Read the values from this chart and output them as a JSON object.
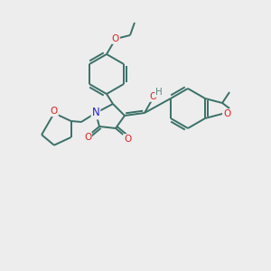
{
  "bg_color": "#EDEDED",
  "bond_color": "#3a7068",
  "bond_lw": 1.4,
  "double_lw": 1.4,
  "atom_colors": {
    "O": "#dd2222",
    "N": "#2222cc",
    "H": "#5a8a80"
  },
  "figsize": [
    3.0,
    3.0
  ],
  "dpi": 100,
  "xlim": [
    0,
    300
  ],
  "ylim": [
    0,
    300
  ]
}
